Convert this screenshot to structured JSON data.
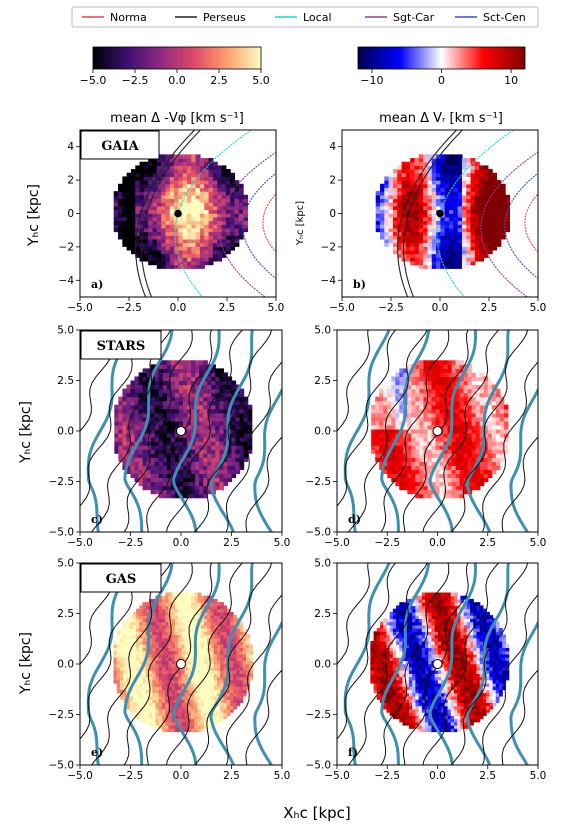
{
  "legend": {
    "position": "top",
    "entries": [
      {
        "name": "Norma",
        "color": "#e8424f"
      },
      {
        "name": "Perseus",
        "color": "#222222"
      },
      {
        "name": "Local",
        "color": "#1fd6d6"
      },
      {
        "name": "Sgt-Car",
        "color": "#9a3c8e"
      },
      {
        "name": "Sct-Cen",
        "color": "#3a4fd8"
      }
    ]
  },
  "colorbars": [
    {
      "label": "mean Δ -Vφ [km s⁻¹]",
      "ticks": [
        "−5.0",
        "−2.5",
        "0.0",
        "2.5",
        "5.0"
      ],
      "range": [
        -5,
        5
      ],
      "cmap": "magma"
    },
    {
      "label": "mean Δ Vᵣ [km s⁻¹]",
      "ticks": [
        "−10",
        "0",
        "10"
      ],
      "range": [
        -12,
        12
      ],
      "cmap": "seismic"
    }
  ],
  "axis_ticks": {
    "gaia_y": [
      "4",
      "2",
      "0",
      "−2",
      "−4"
    ],
    "x": [
      "−5.0",
      "−2.5",
      "0.0",
      "2.5",
      "5.0"
    ],
    "y": [
      "5.0",
      "2.5",
      "0.0",
      "−2.5",
      "−5.0"
    ]
  },
  "labels": {
    "ylabel": "Yₕc [kpc]",
    "ylabel_small": "Yₕc [kpc]",
    "xlabel": "Xₕc [kpc]"
  },
  "chart_data": [
    {
      "type": "heatmap",
      "panel": "a)",
      "title": "GAIA",
      "xlim": [
        -5,
        5
      ],
      "ylim": [
        -5,
        5
      ],
      "radius": 3.5,
      "cmap": "magma"
    },
    {
      "type": "heatmap",
      "panel": "b)",
      "xlim": [
        -5,
        5
      ],
      "ylim": [
        -5,
        5
      ],
      "radius": 3.5,
      "cmap": "seismic"
    },
    {
      "type": "heatmap",
      "panel": "c)",
      "title": "STARS",
      "xlim": [
        -5,
        5
      ],
      "ylim": [
        -5,
        5
      ],
      "radius": 3.5,
      "cmap": "magma"
    },
    {
      "type": "heatmap",
      "panel": "d)",
      "xlim": [
        -5,
        5
      ],
      "ylim": [
        -5,
        5
      ],
      "radius": 3.5,
      "cmap": "seismic"
    },
    {
      "type": "heatmap",
      "panel": "e)",
      "title": "GAS",
      "xlim": [
        -5,
        5
      ],
      "ylim": [
        -5,
        5
      ],
      "radius": 3.5,
      "cmap": "magma"
    },
    {
      "type": "heatmap",
      "panel": "f)",
      "xlim": [
        -5,
        5
      ],
      "ylim": [
        -5,
        5
      ],
      "radius": 3.5,
      "cmap": "seismic"
    }
  ]
}
